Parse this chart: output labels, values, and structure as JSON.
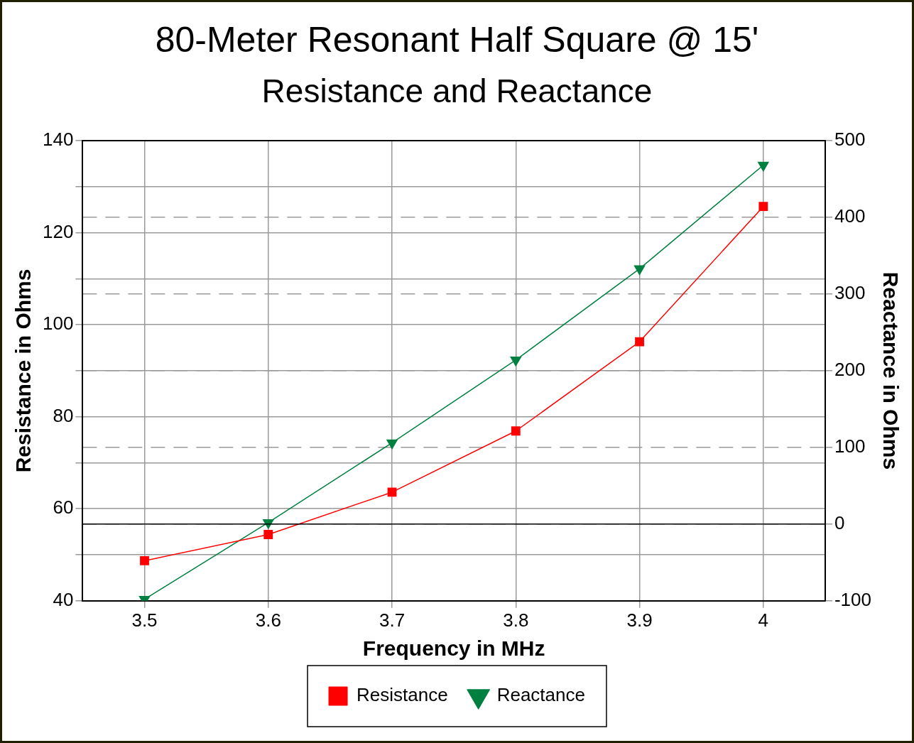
{
  "chart_data": {
    "type": "line",
    "title": "80-Meter Resonant Half Square @ 15'",
    "subtitle": "Resistance and Reactance",
    "xlabel": "Frequency in MHz",
    "ylabel": "Resistance in Ohms",
    "y2label": "Reactance in Ohms",
    "x": [
      3.5,
      3.6,
      3.7,
      3.8,
      3.9,
      4
    ],
    "series": [
      {
        "name": "Resistance",
        "color": "#ff0000",
        "marker": "square",
        "values": [
          48.7,
          54.4,
          63.6,
          76.9,
          96.3,
          125.7
        ]
      },
      {
        "name": "Reactance",
        "color": "#008040",
        "marker": "triangle",
        "axis": "y2",
        "values": [
          -98,
          2,
          106,
          214,
          333,
          468
        ]
      }
    ],
    "xlim": [
      3.45,
      4.05
    ],
    "xticks": [
      3.5,
      3.6,
      3.7,
      3.8,
      3.9,
      4
    ],
    "ylim": [
      40,
      140
    ],
    "yticks": [
      40,
      {
        "value": 50,
        "label": null
      },
      60,
      {
        "value": 70,
        "label": null
      },
      80,
      {
        "value": 90,
        "label": null
      },
      100,
      {
        "value": 110,
        "label": null
      },
      120,
      {
        "value": 130,
        "label": null
      },
      140
    ],
    "y2lim": [
      -100,
      500
    ],
    "y2ticks": [
      -100,
      0,
      100,
      200,
      300,
      400,
      500
    ],
    "ref_lines": [
      {
        "axis": "y2",
        "value": 0,
        "color": "#000000"
      }
    ],
    "grid": true,
    "legend": "bottom",
    "line_style": "solid"
  }
}
